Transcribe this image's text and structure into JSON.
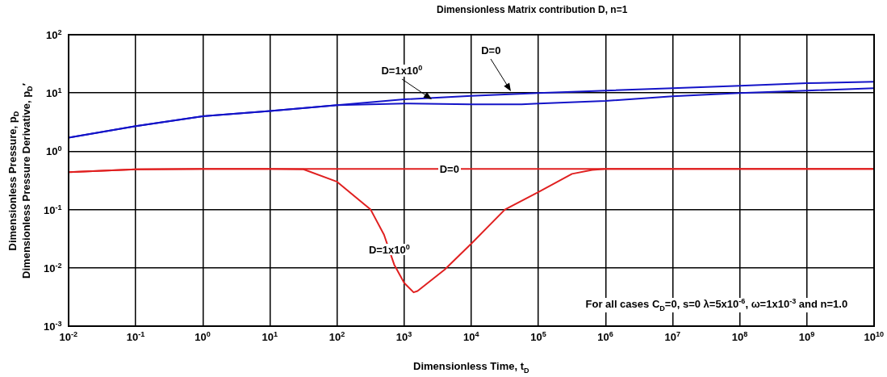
{
  "chart_data": {
    "type": "line",
    "title": "Dimensionless Matrix contribution D, n=1",
    "xlabel": "Dimensionless Time, t$_{D}$",
    "ylabel": "Dimensionless Pressure, p$_{D}$\nDimensionless Pressure Derivative, p$_{D}$′",
    "log": "xy",
    "grid": true,
    "legend": false,
    "marker": "none",
    "line_style": "solid",
    "xlim": [
      0.01,
      10000000000
    ],
    "ylim": [
      0.001,
      100
    ],
    "xticks": [
      {
        "value": 0.01,
        "label": "10$^{-2}$"
      },
      {
        "value": 0.1,
        "label": "10$^{-1}$"
      },
      {
        "value": 1,
        "label": "10$^{0}$"
      },
      {
        "value": 10,
        "label": "10$^{1}$"
      },
      {
        "value": 100,
        "label": "10$^{2}$"
      },
      {
        "value": 1000,
        "label": "10$^{3}$"
      },
      {
        "value": 10000,
        "label": "10$^{4}$"
      },
      {
        "value": 100000,
        "label": "10$^{5}$"
      },
      {
        "value": 1000000,
        "label": "10$^{6}$"
      },
      {
        "value": 10000000,
        "label": "10$^{7}$"
      },
      {
        "value": 100000000,
        "label": "10$^{8}$"
      },
      {
        "value": 1000000000,
        "label": "10$^{9}$"
      },
      {
        "value": 10000000000,
        "label": "10$^{10}$"
      }
    ],
    "yticks": [
      {
        "value": 0.001,
        "label": "10$^{-3}$"
      },
      {
        "value": 0.01,
        "label": "10$^{-2}$"
      },
      {
        "value": 0.1,
        "label": "10$^{-1}$"
      },
      {
        "value": 1,
        "label": "10$^{0}$"
      },
      {
        "value": 10,
        "label": "10$^{1}$"
      },
      {
        "value": 100,
        "label": "10$^{2}$"
      }
    ],
    "series": [
      {
        "color": "#1414c8",
        "x": [
          0.01,
          0.1,
          1,
          10,
          100,
          1000,
          10000,
          100000,
          1000000,
          10000000,
          100000000,
          1000000000,
          10000000000
        ],
        "values": [
          1.72,
          2.7,
          4.0,
          4.9,
          6.2,
          7.8,
          8.9,
          10,
          11.0,
          12.1,
          13.3,
          14.7,
          15.6
        ]
      },
      {
        "color": "#1414c8",
        "x": [
          0.01,
          0.1,
          1,
          10,
          100,
          316,
          1000,
          10000,
          56000,
          100000,
          1000000,
          10000000,
          100000000,
          1000000000,
          10000000000
        ],
        "values": [
          1.72,
          2.7,
          4.0,
          4.9,
          6.2,
          6.4,
          6.6,
          6.4,
          6.4,
          6.6,
          7.3,
          8.8,
          10,
          11,
          12.1
        ]
      },
      {
        "color": "#e02020",
        "x": [
          0.01,
          0.1,
          1,
          10,
          10000000000
        ],
        "values": [
          0.44,
          0.49,
          0.5,
          0.5,
          0.5
        ]
      },
      {
        "color": "#e02020",
        "x": [
          0.01,
          0.1,
          1,
          10,
          31.6,
          100,
          316,
          500,
          708,
          1000,
          1380,
          1580,
          4000,
          10000,
          31600,
          100000,
          316000,
          631000,
          1000000,
          10000000000
        ],
        "values": [
          0.44,
          0.49,
          0.5,
          0.5,
          0.49,
          0.3,
          0.1,
          0.037,
          0.0114,
          0.0055,
          0.0038,
          0.004,
          0.0093,
          0.026,
          0.1,
          0.2,
          0.41,
          0.48,
          0.5,
          0.5
        ]
      }
    ],
    "annotations": [
      {
        "text": "D=1x10$^{0}$",
        "x": 2570,
        "y": 7.7
      },
      {
        "text": "D=0",
        "x": 39000,
        "y": 10.7
      },
      {
        "text": "D=0",
        "x": 4700,
        "y": 0.5
      },
      {
        "text": "D=1x10$^{0}$",
        "x": 600,
        "y": 0.021
      },
      "For all cases C$_{D}$=0, s=0 λ=5x10$^{-6}$, ω=1x10$^{-3}$ and n=1.0"
    ]
  }
}
